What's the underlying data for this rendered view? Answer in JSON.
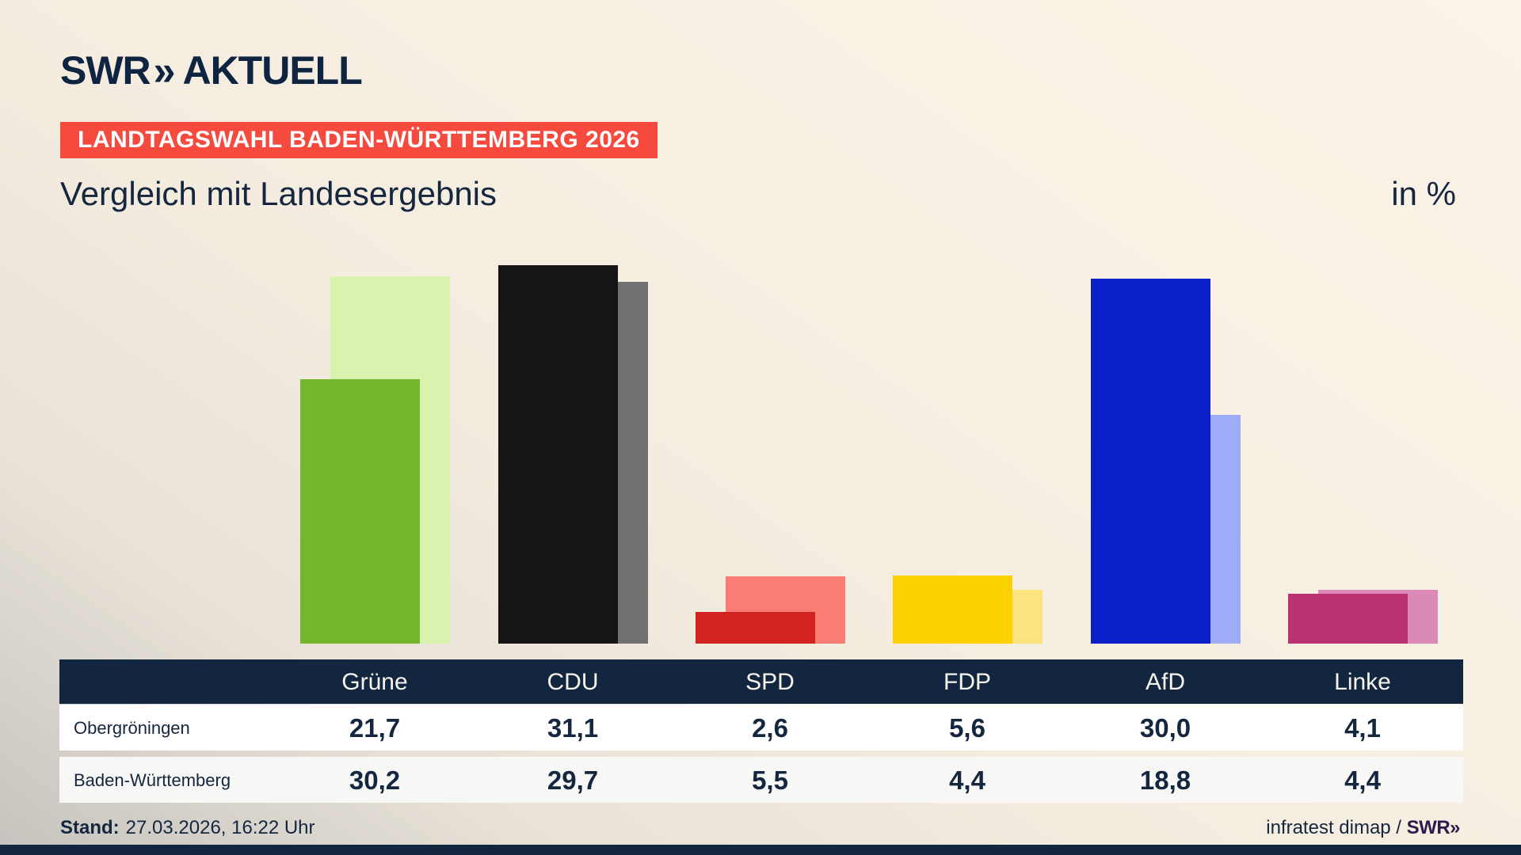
{
  "brand": {
    "logo_swr": "SWR",
    "logo_chevrons": "»",
    "logo_suffix": "AKTUELL",
    "footer_source_prefix": "infratest dimap / ",
    "footer_logo": "SWR»"
  },
  "banner": {
    "label": "LANDTAGSWAHL BADEN-WÜRTTEMBERG 2026",
    "bg_color": "#f74a3f"
  },
  "title": {
    "text": "Vergleich mit Landesergebnis",
    "unit": "in %"
  },
  "footer": {
    "stand_label": "Stand:",
    "stand_value": "27.03.2026, 16:22 Uhr"
  },
  "chart_data": {
    "type": "bar",
    "categories": [
      "Grüne",
      "CDU",
      "SPD",
      "FDP",
      "AfD",
      "Linke"
    ],
    "series": [
      {
        "name": "Obergröningen",
        "values": [
          21.7,
          31.1,
          2.6,
          5.6,
          30.0,
          4.1
        ]
      },
      {
        "name": "Baden-Württemberg",
        "values": [
          30.2,
          29.7,
          5.5,
          4.4,
          18.8,
          4.4
        ]
      }
    ],
    "party_colors": [
      {
        "party": "Grüne",
        "front": "#74b62c",
        "back": "#d9f3ae"
      },
      {
        "party": "CDU",
        "front": "#151515",
        "back": "#717171"
      },
      {
        "party": "SPD",
        "front": "#d2231f",
        "back": "#fa7d75"
      },
      {
        "party": "FDP",
        "front": "#fdd000",
        "back": "#fbe37d"
      },
      {
        "party": "AfD",
        "front": "#0c20ca",
        "back": "#9dacf7"
      },
      {
        "party": "Linke",
        "front": "#bb3274",
        "back": "#db8ab5"
      }
    ],
    "title": "Vergleich mit Landesergebnis",
    "ylabel": "in %",
    "ylim": [
      0,
      32
    ],
    "grid": false,
    "legend_position": "table-below",
    "value_format": "de-DE one decimal, comma separator"
  },
  "table": {
    "header": [
      "Grüne",
      "CDU",
      "SPD",
      "FDP",
      "AfD",
      "Linke"
    ],
    "rows": [
      {
        "label": "Obergröningen",
        "values": [
          "21,7",
          "31,1",
          "2,6",
          "5,6",
          "30,0",
          "4,1"
        ]
      },
      {
        "label": "Baden-Württemberg",
        "values": [
          "30,2",
          "29,7",
          "5,5",
          "4,4",
          "18,8",
          "4,4"
        ]
      }
    ]
  },
  "colors": {
    "navy": "#12273f",
    "background_cream": "#f8f0e3",
    "banner_red": "#f74a3f",
    "swr_footer_purple": "#2d1b4e"
  }
}
